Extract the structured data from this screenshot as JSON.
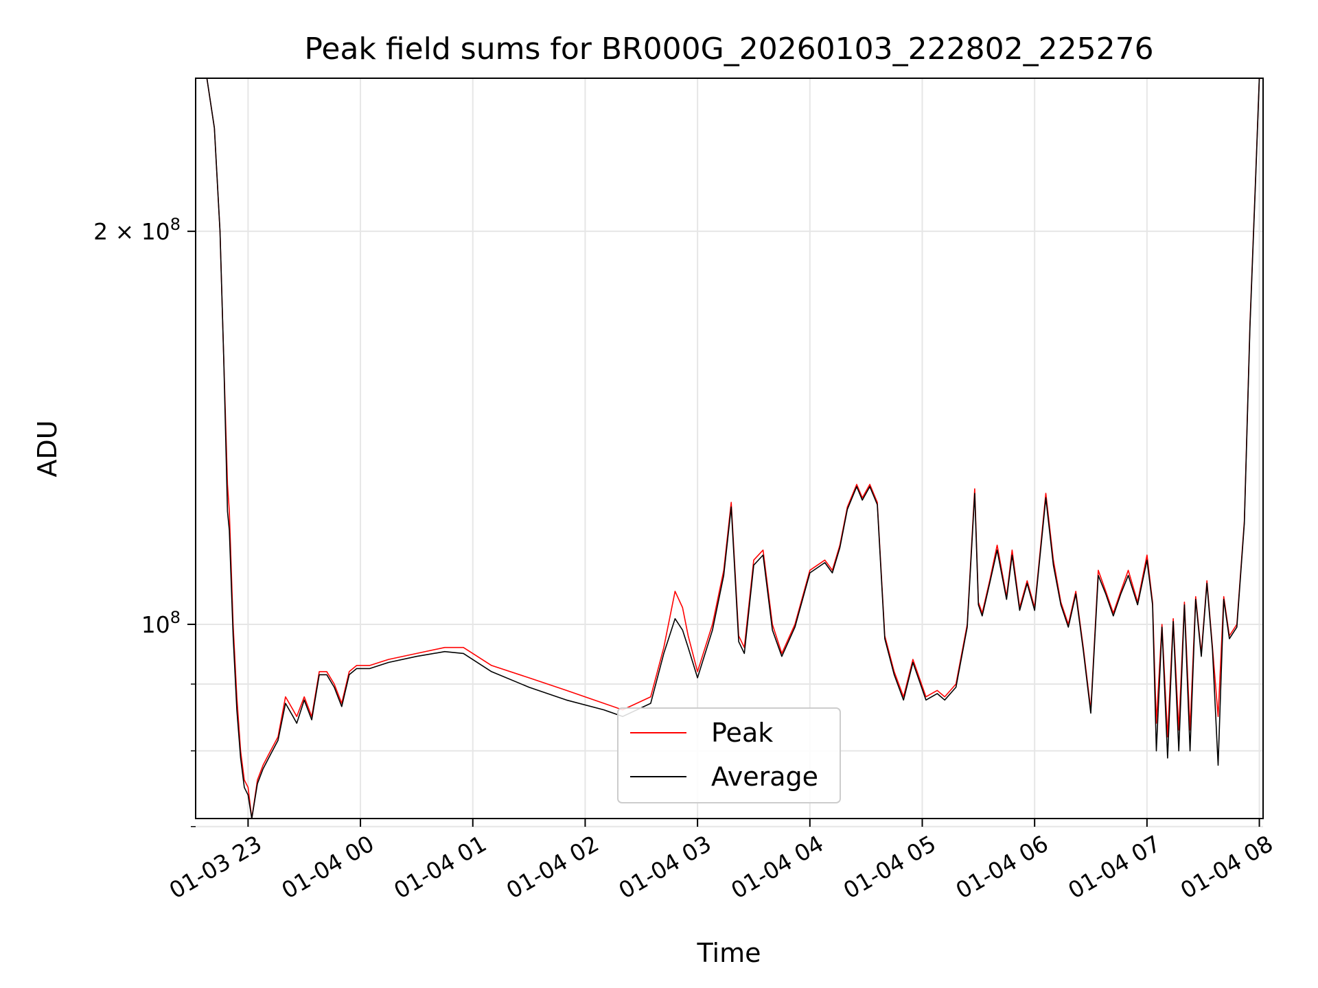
{
  "chart_data": {
    "type": "line",
    "title": "Peak field sums for BR000G_20260103_222802_225276",
    "xlabel": "Time",
    "ylabel": "ADU",
    "yscale": "log",
    "ylim": [
      71000000,
      262000000
    ],
    "xlim": [
      "2026-01-03 22:32",
      "2026-01-04 08:02"
    ],
    "grid": true,
    "legend_position": "lower center",
    "x_ticks": [
      {
        "value": "2026-01-03 23:00",
        "label": "01-03 23"
      },
      {
        "value": "2026-01-04 00:00",
        "label": "01-04 00"
      },
      {
        "value": "2026-01-04 01:00",
        "label": "01-04 01"
      },
      {
        "value": "2026-01-04 02:00",
        "label": "01-04 02"
      },
      {
        "value": "2026-01-04 03:00",
        "label": "01-04 03"
      },
      {
        "value": "2026-01-04 04:00",
        "label": "01-04 04"
      },
      {
        "value": "2026-01-04 05:00",
        "label": "01-04 05"
      },
      {
        "value": "2026-01-04 06:00",
        "label": "01-04 06"
      },
      {
        "value": "2026-01-04 07:00",
        "label": "01-04 07"
      },
      {
        "value": "2026-01-04 08:00",
        "label": "01-04 08"
      }
    ],
    "y_major_ticks": [
      {
        "value": 100000000,
        "base": "10",
        "exp": "8",
        "mantissa": ""
      },
      {
        "value": 200000000,
        "base": "10",
        "exp": "8",
        "mantissa": "2 × "
      }
    ],
    "y_minor_ticks": [
      70000000,
      80000000,
      90000000
    ],
    "series": [
      {
        "name": "Peak",
        "color": "#ff0000",
        "x": [
          "2026-01-03 22:32",
          "2026-01-03 22:38",
          "2026-01-03 22:42",
          "2026-01-03 22:45",
          "2026-01-03 22:47",
          "2026-01-03 22:49",
          "2026-01-03 22:50",
          "2026-01-03 22:52",
          "2026-01-03 22:54",
          "2026-01-03 22:56",
          "2026-01-03 22:58",
          "2026-01-03 23:00",
          "2026-01-03 23:02",
          "2026-01-03 23:05",
          "2026-01-03 23:08",
          "2026-01-03 23:12",
          "2026-01-03 23:16",
          "2026-01-03 23:20",
          "2026-01-03 23:24",
          "2026-01-03 23:26",
          "2026-01-03 23:30",
          "2026-01-03 23:34",
          "2026-01-03 23:38",
          "2026-01-03 23:42",
          "2026-01-03 23:46",
          "2026-01-03 23:50",
          "2026-01-03 23:54",
          "2026-01-03 23:58",
          "2026-01-04 00:05",
          "2026-01-04 00:15",
          "2026-01-04 00:30",
          "2026-01-04 00:45",
          "2026-01-04 00:55",
          "2026-01-04 01:10",
          "2026-01-04 01:30",
          "2026-01-04 01:50",
          "2026-01-04 02:10",
          "2026-01-04 02:20",
          "2026-01-04 02:35",
          "2026-01-04 02:42",
          "2026-01-04 02:48",
          "2026-01-04 02:52",
          "2026-01-04 02:55",
          "2026-01-04 03:00",
          "2026-01-04 03:08",
          "2026-01-04 03:14",
          "2026-01-04 03:18",
          "2026-01-04 03:22",
          "2026-01-04 03:25",
          "2026-01-04 03:30",
          "2026-01-04 03:35",
          "2026-01-04 03:40",
          "2026-01-04 03:45",
          "2026-01-04 03:52",
          "2026-01-04 04:00",
          "2026-01-04 04:08",
          "2026-01-04 04:12",
          "2026-01-04 04:16",
          "2026-01-04 04:20",
          "2026-01-04 04:25",
          "2026-01-04 04:28",
          "2026-01-04 04:32",
          "2026-01-04 04:36",
          "2026-01-04 04:40",
          "2026-01-04 04:45",
          "2026-01-04 04:50",
          "2026-01-04 04:55",
          "2026-01-04 05:02",
          "2026-01-04 05:08",
          "2026-01-04 05:12",
          "2026-01-04 05:18",
          "2026-01-04 05:24",
          "2026-01-04 05:28",
          "2026-01-04 05:30",
          "2026-01-04 05:32",
          "2026-01-04 05:36",
          "2026-01-04 05:40",
          "2026-01-04 05:45",
          "2026-01-04 05:48",
          "2026-01-04 05:52",
          "2026-01-04 05:56",
          "2026-01-04 06:00",
          "2026-01-04 06:06",
          "2026-01-04 06:10",
          "2026-01-04 06:14",
          "2026-01-04 06:18",
          "2026-01-04 06:22",
          "2026-01-04 06:26",
          "2026-01-04 06:30",
          "2026-01-04 06:34",
          "2026-01-04 06:38",
          "2026-01-04 06:42",
          "2026-01-04 06:46",
          "2026-01-04 06:50",
          "2026-01-04 06:55",
          "2026-01-04 07:00",
          "2026-01-04 07:03",
          "2026-01-04 07:05",
          "2026-01-04 07:08",
          "2026-01-04 07:11",
          "2026-01-04 07:14",
          "2026-01-04 07:17",
          "2026-01-04 07:20",
          "2026-01-04 07:23",
          "2026-01-04 07:26",
          "2026-01-04 07:29",
          "2026-01-04 07:32",
          "2026-01-04 07:35",
          "2026-01-04 07:38",
          "2026-01-04 07:41",
          "2026-01-04 07:44",
          "2026-01-04 07:48",
          "2026-01-04 07:52",
          "2026-01-04 07:55",
          "2026-01-04 07:58",
          "2026-01-04 08:00",
          "2026-01-04 08:02"
        ],
        "y": [
          262000000,
          262000000,
          240000000,
          200000000,
          160000000,
          128000000,
          122000000,
          100000000,
          88000000,
          80000000,
          76000000,
          75000000,
          71000000,
          76000000,
          78000000,
          80000000,
          82000000,
          88000000,
          86000000,
          85000000,
          88000000,
          85000000,
          92000000,
          92000000,
          90000000,
          87000000,
          92000000,
          93000000,
          93000000,
          94000000,
          95000000,
          96000000,
          96000000,
          93000000,
          91000000,
          89000000,
          87000000,
          86000000,
          88000000,
          96000000,
          106000000,
          103000000,
          98000000,
          92000000,
          100000000,
          110000000,
          124000000,
          98000000,
          96000000,
          112000000,
          114000000,
          100000000,
          95000000,
          100000000,
          110000000,
          112000000,
          110000000,
          115000000,
          123000000,
          128000000,
          125000000,
          128000000,
          124000000,
          98000000,
          92000000,
          88000000,
          94000000,
          88000000,
          89000000,
          88000000,
          90000000,
          100000000,
          127000000,
          104000000,
          102000000,
          108000000,
          115000000,
          105000000,
          114000000,
          103000000,
          108000000,
          103000000,
          126000000,
          112000000,
          104000000,
          100000000,
          106000000,
          96000000,
          86000000,
          110000000,
          106000000,
          102000000,
          106000000,
          110000000,
          104000000,
          113000000,
          104000000,
          84000000,
          100000000,
          82000000,
          101000000,
          83000000,
          104000000,
          83000000,
          105000000,
          95000000,
          108000000,
          96000000,
          85000000,
          105000000,
          98000000,
          100000000,
          120000000,
          170000000,
          220000000,
          262000000,
          262000000
        ]
      },
      {
        "name": "Average",
        "color": "#000000",
        "x": [
          "2026-01-03 22:32",
          "2026-01-03 22:38",
          "2026-01-03 22:42",
          "2026-01-03 22:45",
          "2026-01-03 22:47",
          "2026-01-03 22:49",
          "2026-01-03 22:50",
          "2026-01-03 22:52",
          "2026-01-03 22:54",
          "2026-01-03 22:56",
          "2026-01-03 22:58",
          "2026-01-03 23:00",
          "2026-01-03 23:02",
          "2026-01-03 23:05",
          "2026-01-03 23:08",
          "2026-01-03 23:12",
          "2026-01-03 23:16",
          "2026-01-03 23:20",
          "2026-01-03 23:24",
          "2026-01-03 23:26",
          "2026-01-03 23:30",
          "2026-01-03 23:34",
          "2026-01-03 23:38",
          "2026-01-03 23:42",
          "2026-01-03 23:46",
          "2026-01-03 23:50",
          "2026-01-03 23:54",
          "2026-01-03 23:58",
          "2026-01-04 00:05",
          "2026-01-04 00:15",
          "2026-01-04 00:30",
          "2026-01-04 00:45",
          "2026-01-04 00:55",
          "2026-01-04 01:10",
          "2026-01-04 01:30",
          "2026-01-04 01:50",
          "2026-01-04 02:10",
          "2026-01-04 02:20",
          "2026-01-04 02:35",
          "2026-01-04 02:42",
          "2026-01-04 02:48",
          "2026-01-04 02:52",
          "2026-01-04 02:55",
          "2026-01-04 03:00",
          "2026-01-04 03:08",
          "2026-01-04 03:14",
          "2026-01-04 03:18",
          "2026-01-04 03:22",
          "2026-01-04 03:25",
          "2026-01-04 03:30",
          "2026-01-04 03:35",
          "2026-01-04 03:40",
          "2026-01-04 03:45",
          "2026-01-04 03:52",
          "2026-01-04 04:00",
          "2026-01-04 04:08",
          "2026-01-04 04:12",
          "2026-01-04 04:16",
          "2026-01-04 04:20",
          "2026-01-04 04:25",
          "2026-01-04 04:28",
          "2026-01-04 04:32",
          "2026-01-04 04:36",
          "2026-01-04 04:40",
          "2026-01-04 04:45",
          "2026-01-04 04:50",
          "2026-01-04 04:55",
          "2026-01-04 05:02",
          "2026-01-04 05:08",
          "2026-01-04 05:12",
          "2026-01-04 05:18",
          "2026-01-04 05:24",
          "2026-01-04 05:28",
          "2026-01-04 05:30",
          "2026-01-04 05:32",
          "2026-01-04 05:36",
          "2026-01-04 05:40",
          "2026-01-04 05:45",
          "2026-01-04 05:48",
          "2026-01-04 05:52",
          "2026-01-04 05:56",
          "2026-01-04 06:00",
          "2026-01-04 06:06",
          "2026-01-04 06:10",
          "2026-01-04 06:14",
          "2026-01-04 06:18",
          "2026-01-04 06:22",
          "2026-01-04 06:26",
          "2026-01-04 06:30",
          "2026-01-04 06:34",
          "2026-01-04 06:38",
          "2026-01-04 06:42",
          "2026-01-04 06:46",
          "2026-01-04 06:50",
          "2026-01-04 06:55",
          "2026-01-04 07:00",
          "2026-01-04 07:03",
          "2026-01-04 07:05",
          "2026-01-04 07:08",
          "2026-01-04 07:11",
          "2026-01-04 07:14",
          "2026-01-04 07:17",
          "2026-01-04 07:20",
          "2026-01-04 07:23",
          "2026-01-04 07:26",
          "2026-01-04 07:29",
          "2026-01-04 07:32",
          "2026-01-04 07:35",
          "2026-01-04 07:38",
          "2026-01-04 07:41",
          "2026-01-04 07:44",
          "2026-01-04 07:48",
          "2026-01-04 07:52",
          "2026-01-04 07:55",
          "2026-01-04 07:58",
          "2026-01-04 08:00",
          "2026-01-04 08:02"
        ],
        "y": [
          262000000,
          262000000,
          240000000,
          200000000,
          160000000,
          122000000,
          118000000,
          98000000,
          86000000,
          79000000,
          75000000,
          74000000,
          71000000,
          75500000,
          77500000,
          79500000,
          81500000,
          87000000,
          85000000,
          84000000,
          87500000,
          84500000,
          91500000,
          91500000,
          89500000,
          86500000,
          91500000,
          92500000,
          92500000,
          93500000,
          94500000,
          95300000,
          95000000,
          92000000,
          89500000,
          87500000,
          86000000,
          85000000,
          87000000,
          95000000,
          101000000,
          99000000,
          96000000,
          91000000,
          99000000,
          109000000,
          123000000,
          97000000,
          95000000,
          111000000,
          113000000,
          99000000,
          94500000,
          99500000,
          109500000,
          111500000,
          109500000,
          114500000,
          122500000,
          127500000,
          124500000,
          127500000,
          123500000,
          97500000,
          91500000,
          87500000,
          93500000,
          87500000,
          88500000,
          87500000,
          89500000,
          99500000,
          126000000,
          103500000,
          101500000,
          107500000,
          114000000,
          104500000,
          113000000,
          102500000,
          107500000,
          102500000,
          125000000,
          111000000,
          103500000,
          99500000,
          105500000,
          95500000,
          85500000,
          109000000,
          105500000,
          101500000,
          105500000,
          109000000,
          103500000,
          112000000,
          103500000,
          80000000,
          99500000,
          79000000,
          100500000,
          80000000,
          103500000,
          80000000,
          104500000,
          94500000,
          107500000,
          95500000,
          78000000,
          104500000,
          97500000,
          99500000,
          119500000,
          169000000,
          219000000,
          262000000,
          262000000
        ]
      }
    ]
  }
}
